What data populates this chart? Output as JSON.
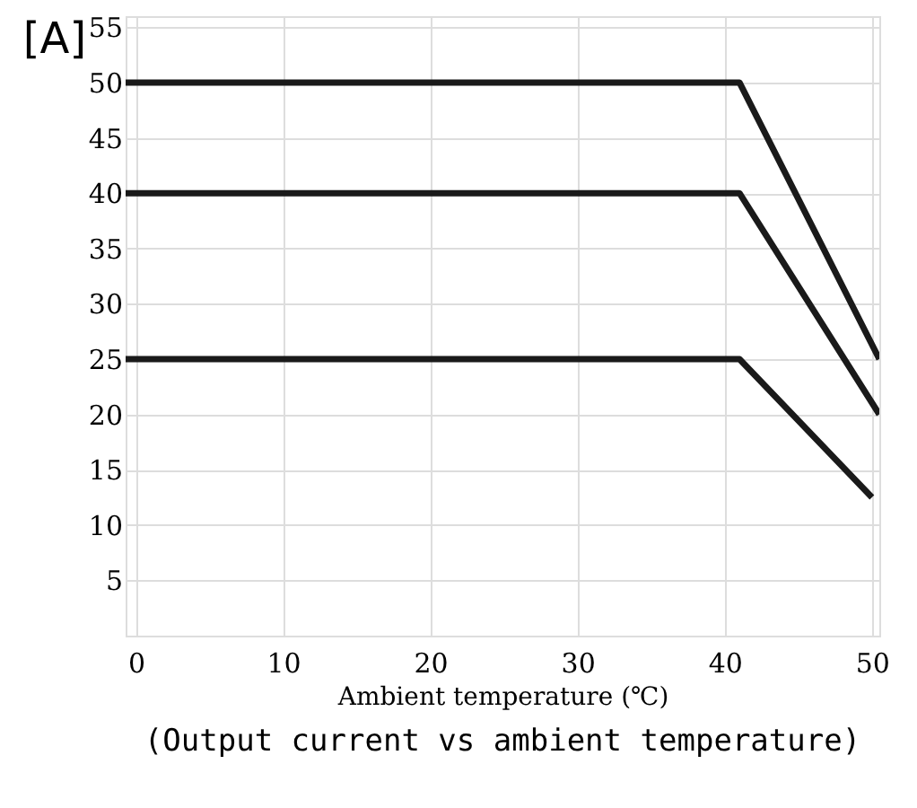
{
  "chart_data": {
    "type": "line",
    "xlabel": "Ambient temperature (℃)",
    "ylabel": "[A]",
    "annotations": [
      "(Output current vs ambient temperature)"
    ],
    "xlim": [
      -0.7,
      50.5
    ],
    "xticks": [
      0,
      10,
      20,
      30,
      40,
      50
    ],
    "ylim": [
      0,
      56
    ],
    "yticks": [
      5,
      10,
      15,
      20,
      25,
      30,
      35,
      40,
      45,
      50,
      55
    ],
    "grid": true,
    "line_style": "solid",
    "series": [
      {
        "color": "#1a1a1a",
        "x": [
          -0.7,
          41,
          50.5
        ],
        "values": [
          50,
          50,
          25
        ]
      },
      {
        "color": "#1a1a1a",
        "x": [
          -0.7,
          41,
          50.5
        ],
        "values": [
          40,
          40,
          20
        ]
      },
      {
        "color": "#1a1a1a",
        "x": [
          -0.7,
          41,
          50
        ],
        "values": [
          25,
          25,
          12.5
        ]
      }
    ]
  }
}
